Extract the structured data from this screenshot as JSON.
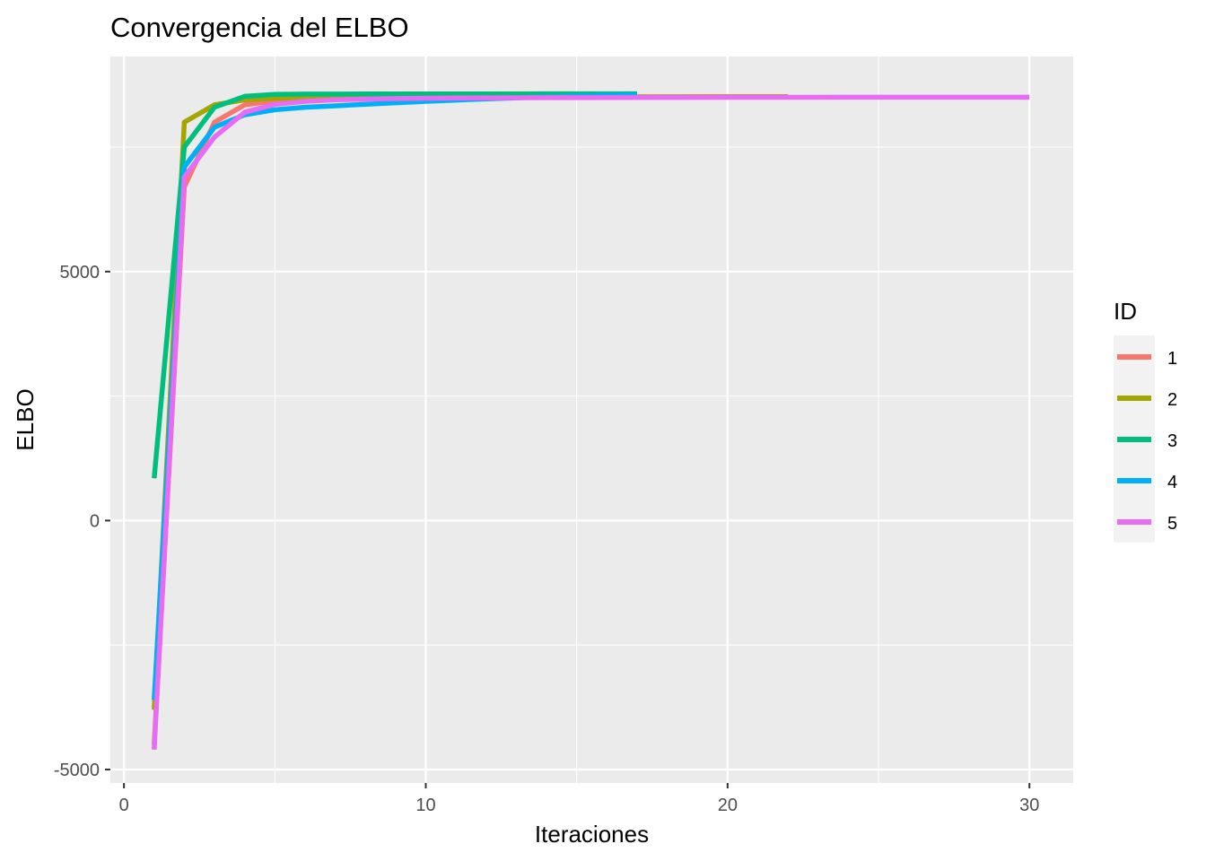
{
  "chart_data": {
    "type": "line",
    "title": "Convergencia del ELBO",
    "xlabel": "Iteraciones",
    "ylabel": "ELBO",
    "xlim": [
      -0.45,
      31.45
    ],
    "ylim": [
      -5270,
      9320
    ],
    "x_ticks": [
      0,
      10,
      20,
      30
    ],
    "x_minor_ticks": [
      5,
      15,
      25
    ],
    "y_ticks": [
      -5000,
      0,
      5000
    ],
    "y_minor_ticks": [
      -2500,
      2500,
      7500
    ],
    "x_tick_labels": [
      "0",
      "10",
      "20",
      "30"
    ],
    "y_tick_labels": [
      "-5000",
      "0",
      "5000"
    ],
    "grid": true,
    "legend": {
      "title": "ID",
      "position": "right"
    },
    "series": [
      {
        "name": "1",
        "color": "#F8766D",
        "x": [
          1,
          2,
          3,
          4,
          5,
          6,
          7,
          8,
          9,
          10,
          12,
          14,
          16,
          18,
          20,
          22
        ],
        "y": [
          -4500,
          6700,
          8000,
          8350,
          8430,
          8460,
          8475,
          8485,
          8490,
          8495,
          8500,
          8505,
          8510,
          8512,
          8514,
          8515
        ]
      },
      {
        "name": "2",
        "color": "#A3A500",
        "x": [
          1,
          2,
          3,
          4,
          5,
          6,
          8,
          10,
          12,
          14,
          16,
          18,
          20,
          22
        ],
        "y": [
          -3800,
          8000,
          8350,
          8450,
          8480,
          8490,
          8495,
          8500,
          8503,
          8505,
          8507,
          8508,
          8509,
          8510
        ]
      },
      {
        "name": "3",
        "color": "#00BF7D",
        "x": [
          1,
          2,
          3,
          4,
          5,
          6,
          8,
          10,
          12,
          14,
          16,
          17
        ],
        "y": [
          850,
          7500,
          8300,
          8520,
          8560,
          8565,
          8567,
          8568,
          8569,
          8570,
          8570,
          8570
        ]
      },
      {
        "name": "4",
        "color": "#00B0F6",
        "x": [
          1,
          2,
          3,
          4,
          5,
          6,
          7,
          8,
          9,
          10,
          12,
          14,
          16,
          17
        ],
        "y": [
          -3600,
          7100,
          7900,
          8150,
          8250,
          8300,
          8330,
          8360,
          8390,
          8420,
          8470,
          8510,
          8540,
          8550
        ]
      },
      {
        "name": "5",
        "color": "#E76BF3",
        "x": [
          1,
          2,
          3,
          4,
          5,
          6,
          7,
          8,
          9,
          10,
          12,
          14,
          16,
          18,
          20,
          22,
          24,
          26,
          28,
          30
        ],
        "y": [
          -4600,
          6900,
          7700,
          8200,
          8360,
          8420,
          8450,
          8465,
          8475,
          8483,
          8490,
          8494,
          8497,
          8499,
          8500,
          8501,
          8502,
          8503,
          8503,
          8503
        ]
      }
    ]
  }
}
